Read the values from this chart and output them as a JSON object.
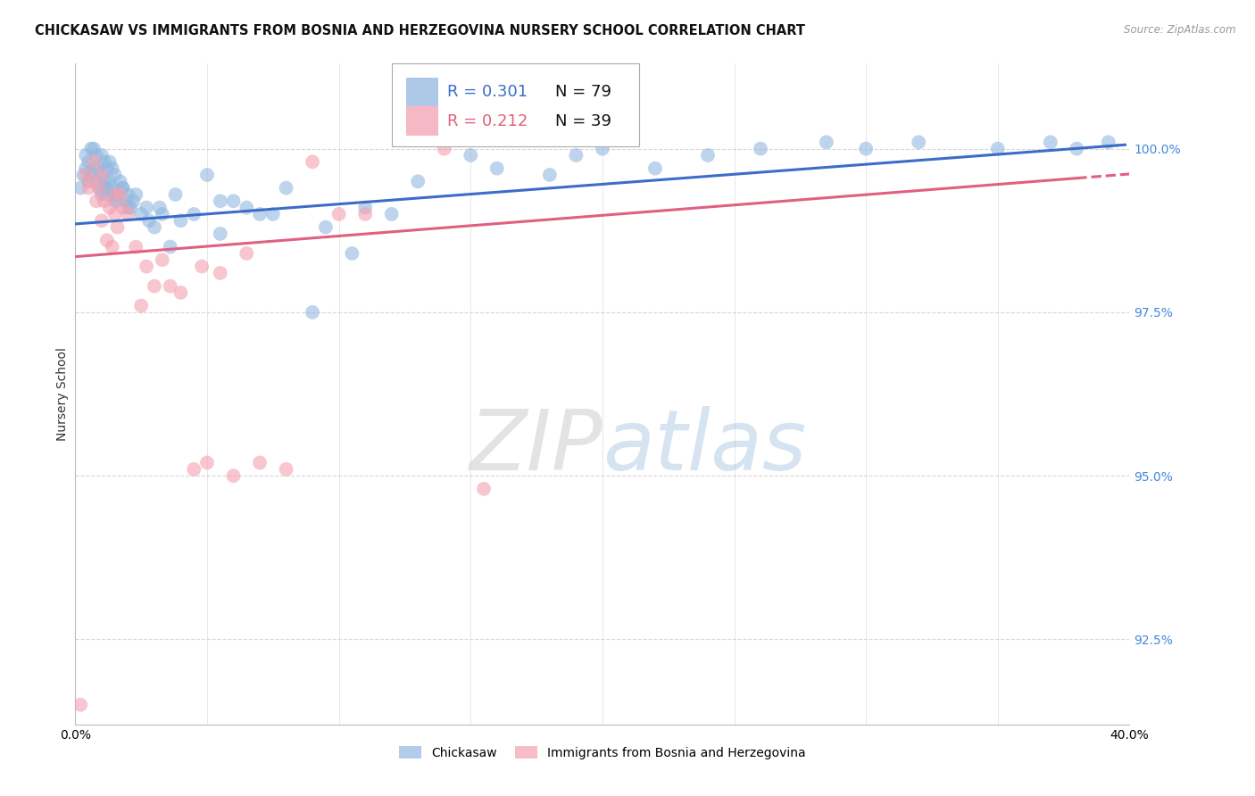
{
  "title": "CHICKASAW VS IMMIGRANTS FROM BOSNIA AND HERZEGOVINA NURSERY SCHOOL CORRELATION CHART",
  "source": "Source: ZipAtlas.com",
  "ylabel": "Nursery School",
  "ytick_values": [
    92.5,
    95.0,
    97.5,
    100.0
  ],
  "xlim": [
    0.0,
    40.0
  ],
  "ylim": [
    91.2,
    101.3
  ],
  "legend_blue_label": "Chickasaw",
  "legend_pink_label": "Immigrants from Bosnia and Herzegovina",
  "blue_color": "#92B8E0",
  "pink_color": "#F4A0B0",
  "blue_line_color": "#3B6DC8",
  "pink_line_color": "#E06080",
  "watermark_zip": "ZIP",
  "watermark_atlas": "atlas",
  "blue_scatter_x": [
    0.2,
    0.3,
    0.4,
    0.4,
    0.5,
    0.5,
    0.6,
    0.6,
    0.7,
    0.7,
    0.8,
    0.8,
    0.9,
    0.9,
    1.0,
    1.0,
    1.0,
    1.1,
    1.1,
    1.2,
    1.2,
    1.3,
    1.3,
    1.4,
    1.4,
    1.5,
    1.5,
    1.6,
    1.7,
    1.8,
    1.9,
    2.0,
    2.1,
    2.2,
    2.5,
    2.7,
    3.0,
    3.3,
    3.6,
    4.0,
    5.0,
    5.5,
    6.0,
    7.0,
    8.0,
    9.0,
    10.5,
    11.0,
    13.0,
    15.0,
    16.0,
    18.0,
    19.0,
    20.0,
    22.0,
    24.0,
    26.0,
    28.5,
    30.0,
    32.0,
    35.0,
    37.0,
    38.0,
    39.2,
    1.2,
    1.5,
    1.8,
    2.0,
    2.3,
    2.8,
    3.2,
    3.8,
    4.5,
    5.5,
    6.5,
    7.5,
    9.5,
    12.0
  ],
  "blue_scatter_y": [
    99.4,
    99.6,
    99.7,
    99.9,
    99.5,
    99.8,
    99.6,
    100.0,
    99.7,
    100.0,
    99.5,
    99.9,
    99.4,
    99.7,
    99.3,
    99.6,
    99.9,
    99.5,
    99.8,
    99.4,
    99.7,
    99.5,
    99.8,
    99.4,
    99.7,
    99.3,
    99.6,
    99.2,
    99.5,
    99.4,
    99.2,
    99.3,
    99.1,
    99.2,
    99.0,
    99.1,
    98.8,
    99.0,
    98.5,
    98.9,
    99.6,
    98.7,
    99.2,
    99.0,
    99.4,
    97.5,
    98.4,
    99.1,
    99.5,
    99.9,
    99.7,
    99.6,
    99.9,
    100.0,
    99.7,
    99.9,
    100.0,
    100.1,
    100.0,
    100.1,
    100.0,
    100.1,
    100.0,
    100.1,
    99.3,
    99.2,
    99.4,
    99.1,
    99.3,
    98.9,
    99.1,
    99.3,
    99.0,
    99.2,
    99.1,
    99.0,
    98.8,
    99.0
  ],
  "pink_scatter_x": [
    0.2,
    0.4,
    0.5,
    0.6,
    0.7,
    0.8,
    0.9,
    1.0,
    1.0,
    1.1,
    1.2,
    1.3,
    1.4,
    1.5,
    1.5,
    1.6,
    1.7,
    1.8,
    2.0,
    2.3,
    2.5,
    2.7,
    3.0,
    3.3,
    3.6,
    4.0,
    4.5,
    5.0,
    6.0,
    7.0,
    8.0,
    9.0,
    10.0,
    11.0,
    14.0,
    15.5,
    4.8,
    5.5,
    6.5
  ],
  "pink_scatter_y": [
    91.5,
    99.6,
    99.4,
    99.5,
    99.8,
    99.2,
    99.4,
    98.9,
    99.6,
    99.2,
    98.6,
    99.1,
    98.5,
    99.0,
    99.3,
    98.8,
    99.3,
    99.1,
    99.0,
    98.5,
    97.6,
    98.2,
    97.9,
    98.3,
    97.9,
    97.8,
    95.1,
    95.2,
    95.0,
    95.2,
    95.1,
    99.8,
    99.0,
    99.0,
    100.0,
    94.8,
    98.2,
    98.1,
    98.4
  ],
  "blue_line_x0": 0.0,
  "blue_line_x1": 39.5,
  "blue_line_y0": 98.85,
  "blue_line_y1": 100.05,
  "blue_dash_x0": 39.5,
  "blue_dash_x1": 40.5,
  "blue_dash_y0": 100.05,
  "blue_dash_y1": 100.08,
  "pink_line_x0": 0.0,
  "pink_line_x1": 38.0,
  "pink_line_y0": 98.35,
  "pink_line_y1": 99.55,
  "pink_dash_x0": 38.0,
  "pink_dash_x1": 40.5,
  "pink_dash_y0": 99.55,
  "pink_dash_y1": 99.63,
  "bg_color": "#FFFFFF",
  "grid_color": "#CCCCCC",
  "title_fontsize": 10.5,
  "axis_label_fontsize": 10,
  "tick_fontsize": 10,
  "legend_fontsize": 12
}
